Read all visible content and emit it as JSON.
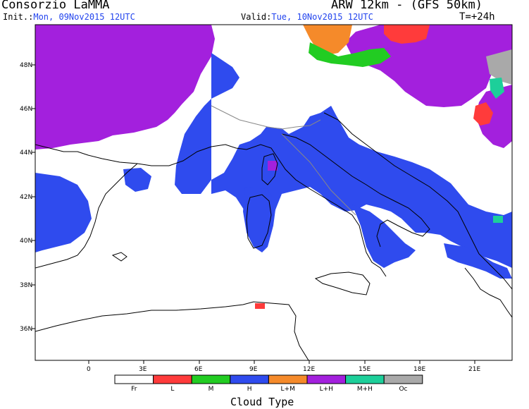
{
  "header": {
    "org": "Consorzio LaMMA",
    "model": "ARW 12km - (GFS 50km)",
    "init_label": "Init.:",
    "init_value": "Mon, 09Nov2015 12UTC",
    "valid_label": "Valid:",
    "valid_value": "Tue, 10Nov2015 12UTC",
    "lead_time": "T=+24h"
  },
  "map": {
    "lat_labels": [
      "48N",
      "46N",
      "44N",
      "42N",
      "40N",
      "38N",
      "36N"
    ],
    "lon_labels": [
      "0",
      "3E",
      "6E",
      "9E",
      "12E",
      "15E",
      "18E",
      "21E"
    ]
  },
  "legend": {
    "title": "Cloud Type",
    "categories": [
      {
        "code": "Fr",
        "color": "#ffffff"
      },
      {
        "code": "L",
        "color": "#ff3b3b"
      },
      {
        "code": "M",
        "color": "#22cc22"
      },
      {
        "code": "H",
        "color": "#2f4bee"
      },
      {
        "code": "L+M",
        "color": "#f58a2a"
      },
      {
        "code": "L+H",
        "color": "#a320dd"
      },
      {
        "code": "M+H",
        "color": "#1dcf9a"
      },
      {
        "code": "Oc",
        "color": "#a9a9a9"
      }
    ]
  }
}
